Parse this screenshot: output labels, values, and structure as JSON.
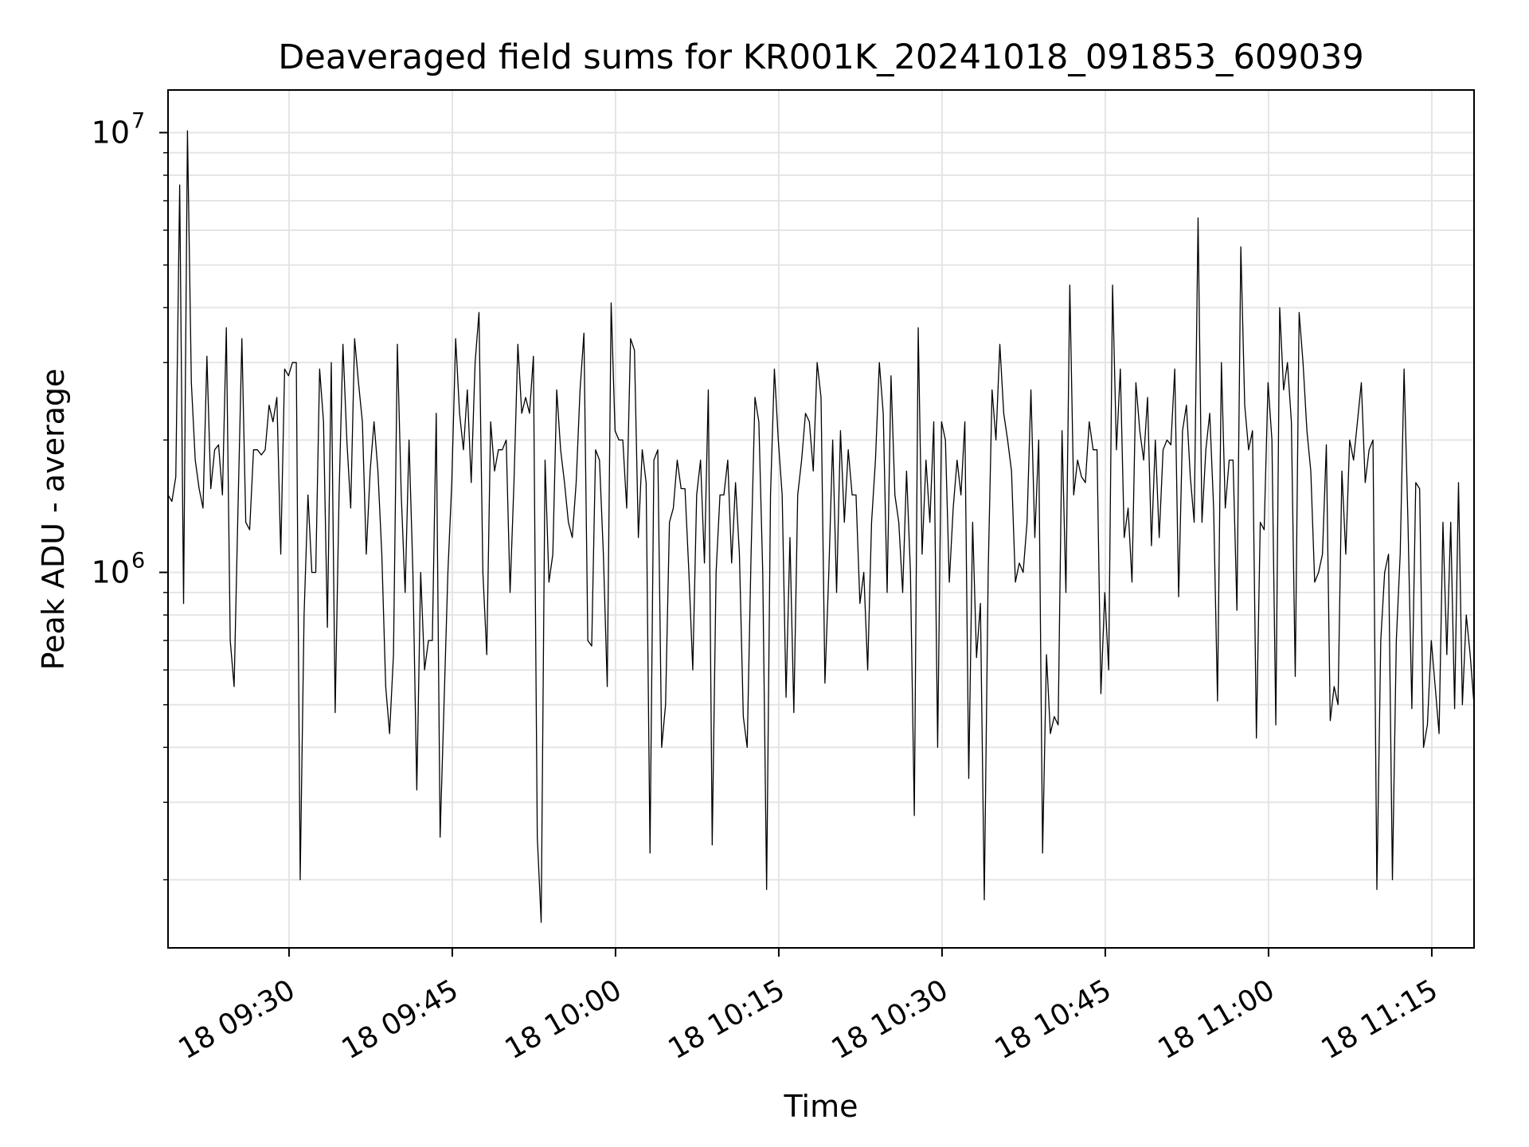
{
  "chart_data": {
    "type": "line",
    "title": "Deaveraged field sums for KR001K_20241018_091853_609039",
    "xlabel": "Time",
    "ylabel": "Peak ADU - average",
    "yscale": "log",
    "grid": true,
    "line_color": "#000000",
    "grid_color": "#e5e5e5",
    "xlim": [
      "2024-10-18 09:18:53",
      "2024-10-18 11:18:53"
    ],
    "ylim": [
      140000,
      12500000
    ],
    "x_ticks": [
      {
        "value": "2024-10-18 09:30",
        "label": "18 09:30"
      },
      {
        "value": "2024-10-18 09:45",
        "label": "18 09:45"
      },
      {
        "value": "2024-10-18 10:00",
        "label": "18 10:00"
      },
      {
        "value": "2024-10-18 10:15",
        "label": "18 10:15"
      },
      {
        "value": "2024-10-18 10:30",
        "label": "18 10:30"
      },
      {
        "value": "2024-10-18 10:45",
        "label": "18 10:45"
      },
      {
        "value": "2024-10-18 11:00",
        "label": "18 11:00"
      },
      {
        "value": "2024-10-18 11:15",
        "label": "18 11:15"
      }
    ],
    "y_ticks": [
      {
        "value": 1000000,
        "base": "10",
        "exp": "6"
      },
      {
        "value": 10000000,
        "base": "10",
        "exp": "7"
      }
    ],
    "series": [
      {
        "x_start": "2024-10-18 09:18:53",
        "x_end": "2024-10-18 11:18:53",
        "values": [
          1500000,
          1450000,
          1650000,
          7600000,
          850000,
          10100000,
          2700000,
          1800000,
          1550000,
          1400000,
          3100000,
          1550000,
          1900000,
          1950000,
          1500000,
          3600000,
          700000,
          550000,
          1400000,
          3400000,
          1300000,
          1250000,
          1900000,
          1900000,
          1850000,
          1900000,
          2400000,
          2200000,
          2500000,
          1100000,
          2900000,
          2800000,
          3000000,
          3000000,
          200000,
          800000,
          1500000,
          1000000,
          1000000,
          2900000,
          2200000,
          750000,
          3000000,
          480000,
          1500000,
          3300000,
          2000000,
          1400000,
          3400000,
          2700000,
          2200000,
          1100000,
          1700000,
          2200000,
          1700000,
          1100000,
          550000,
          430000,
          650000,
          3300000,
          1500000,
          900000,
          2000000,
          1000000,
          320000,
          1000000,
          600000,
          700000,
          700000,
          2300000,
          250000,
          500000,
          1000000,
          1600000,
          3400000,
          2300000,
          1900000,
          2600000,
          1600000,
          3000000,
          3900000,
          1000000,
          650000,
          2200000,
          1700000,
          1900000,
          1900000,
          2000000,
          900000,
          1600000,
          3300000,
          2300000,
          2500000,
          2300000,
          3100000,
          250000,
          160000,
          1800000,
          950000,
          1100000,
          2600000,
          1900000,
          1600000,
          1300000,
          1200000,
          1600000,
          2600000,
          3500000,
          700000,
          680000,
          1900000,
          1800000,
          1100000,
          550000,
          4100000,
          2100000,
          2000000,
          2000000,
          1400000,
          3400000,
          3200000,
          1200000,
          1900000,
          1600000,
          230000,
          1800000,
          1900000,
          400000,
          500000,
          1300000,
          1400000,
          1800000,
          1550000,
          1550000,
          1000000,
          600000,
          1500000,
          1800000,
          1050000,
          2600000,
          240000,
          1000000,
          1500000,
          1500000,
          1800000,
          1050000,
          1600000,
          1100000,
          470000,
          400000,
          1100000,
          2500000,
          2200000,
          1000000,
          190000,
          1500000,
          2900000,
          2000000,
          1500000,
          520000,
          1200000,
          480000,
          1500000,
          1800000,
          2300000,
          2200000,
          1700000,
          3000000,
          2500000,
          560000,
          1000000,
          2000000,
          900000,
          2100000,
          1300000,
          1900000,
          1500000,
          1500000,
          850000,
          1000000,
          600000,
          1300000,
          1800000,
          3000000,
          2300000,
          900000,
          2800000,
          1500000,
          1300000,
          900000,
          1700000,
          1000000,
          280000,
          3600000,
          1100000,
          1800000,
          1300000,
          2200000,
          400000,
          2200000,
          2000000,
          950000,
          1400000,
          1800000,
          1500000,
          2200000,
          340000,
          1300000,
          640000,
          850000,
          180000,
          1000000,
          2600000,
          2000000,
          3300000,
          2300000,
          2000000,
          1700000,
          950000,
          1050000,
          1000000,
          1300000,
          2600000,
          1200000,
          2000000,
          230000,
          650000,
          430000,
          470000,
          450000,
          2100000,
          900000,
          4500000,
          1500000,
          1800000,
          1650000,
          1600000,
          2200000,
          1900000,
          1900000,
          530000,
          900000,
          600000,
          4500000,
          1900000,
          2900000,
          1200000,
          1400000,
          950000,
          2700000,
          2100000,
          1800000,
          2500000,
          1150000,
          2000000,
          1200000,
          1900000,
          2000000,
          1950000,
          2900000,
          880000,
          2100000,
          2400000,
          1650000,
          1300000,
          6400000,
          1300000,
          1900000,
          2300000,
          1400000,
          510000,
          3000000,
          1400000,
          1800000,
          1800000,
          820000,
          5500000,
          2400000,
          1900000,
          2100000,
          420000,
          1300000,
          1250000,
          2700000,
          2000000,
          450000,
          4000000,
          2600000,
          3000000,
          2200000,
          580000,
          3900000,
          3000000,
          2100000,
          1700000,
          950000,
          1000000,
          1100000,
          1950000,
          460000,
          550000,
          500000,
          1700000,
          1100000,
          2000000,
          1800000,
          2200000,
          2700000,
          1600000,
          1900000,
          2000000,
          190000,
          700000,
          1000000,
          1100000,
          200000,
          700000,
          1100000,
          2900000,
          1300000,
          490000,
          1600000,
          1550000,
          400000,
          450000,
          700000,
          550000,
          430000,
          1300000,
          650000,
          1300000,
          490000,
          1600000,
          500000,
          800000,
          650000,
          500000
        ]
      }
    ]
  }
}
